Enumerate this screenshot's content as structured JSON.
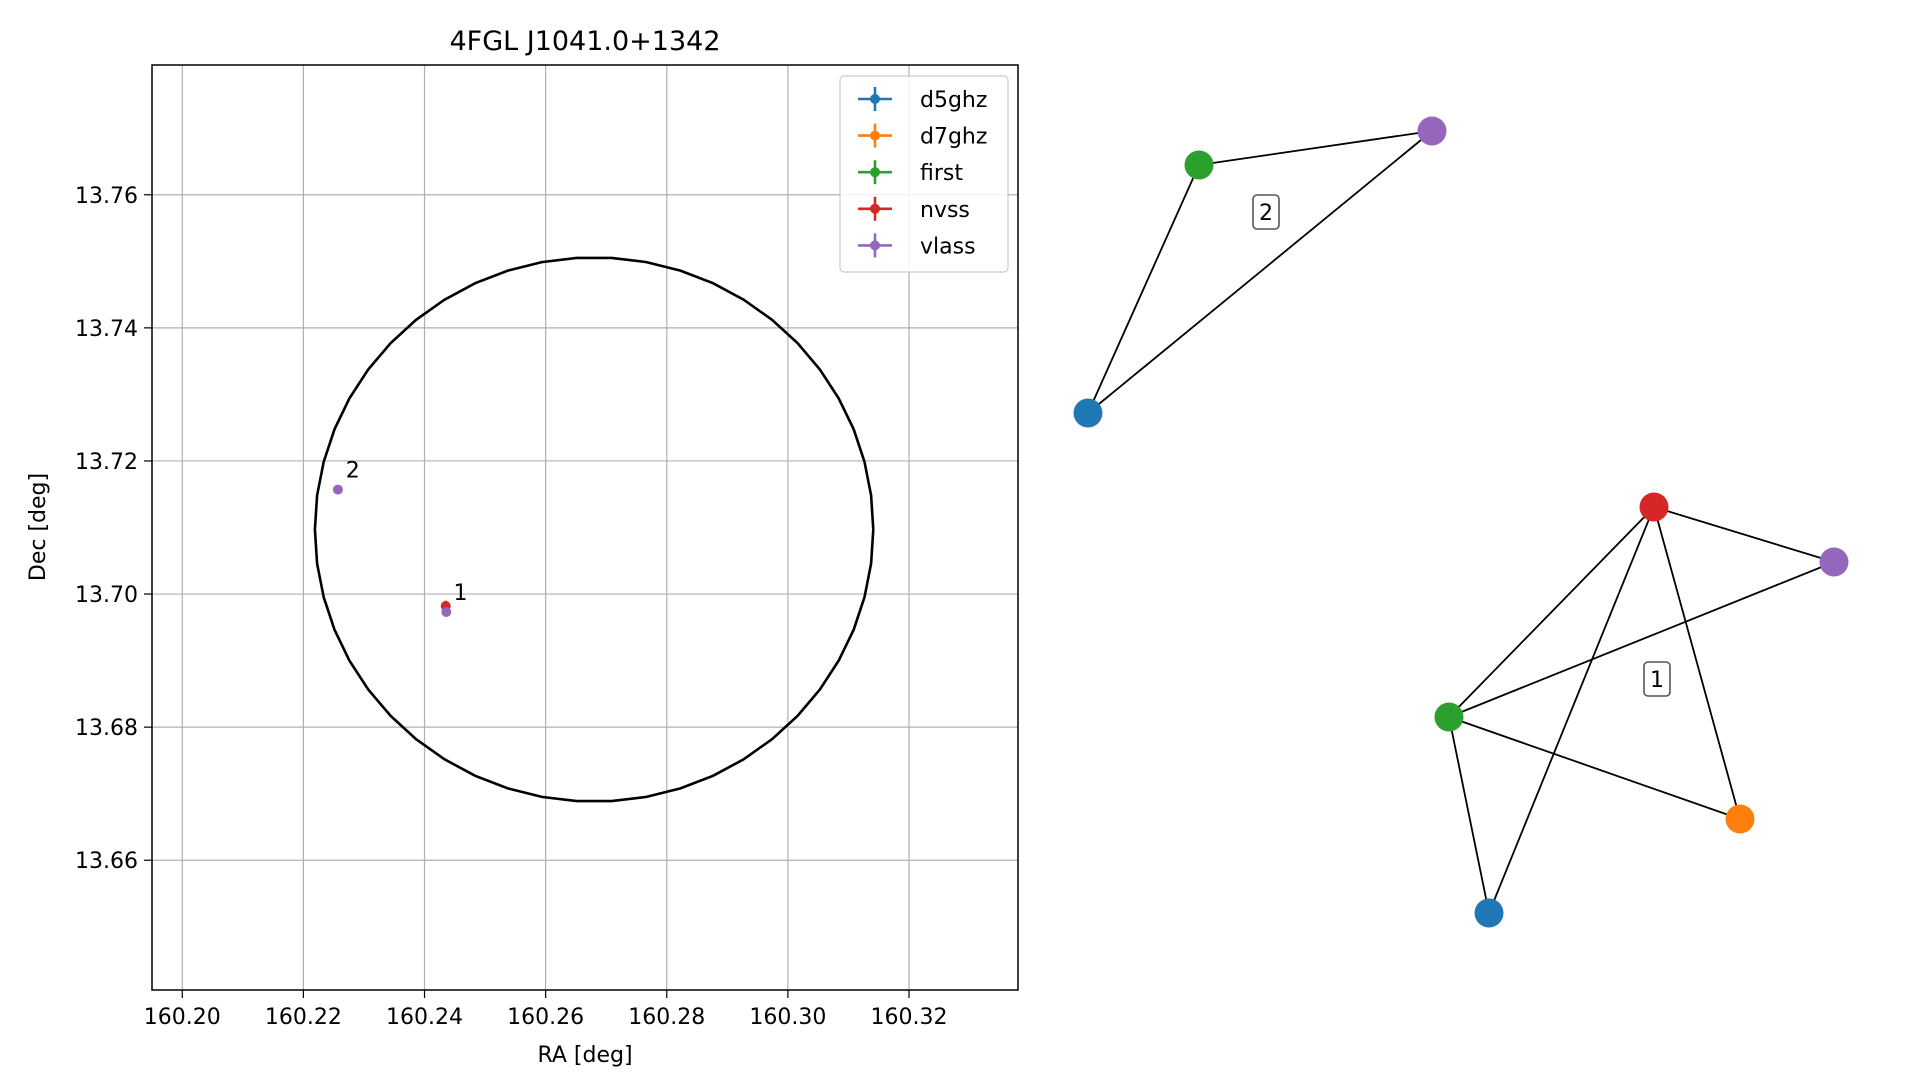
{
  "chart_data": [
    {
      "type": "scatter",
      "title": "4FGL J1041.0+1342",
      "xlabel": "RA [deg]",
      "ylabel": "Dec [deg]",
      "xlim": [
        160.195,
        160.338
      ],
      "ylim": [
        13.6405,
        13.7795
      ],
      "xticks": [
        160.2,
        160.22,
        160.24,
        160.26,
        160.28,
        160.3,
        160.32
      ],
      "xtick_labels": [
        "160.20",
        "160.22",
        "160.24",
        "160.26",
        "160.28",
        "160.30",
        "160.32"
      ],
      "yticks": [
        13.66,
        13.68,
        13.7,
        13.72,
        13.74,
        13.76
      ],
      "ytick_labels": [
        "13.66",
        "13.68",
        "13.70",
        "13.72",
        "13.74",
        "13.76"
      ],
      "grid": true,
      "legend_position": "top-right",
      "legend": [
        {
          "name": "d5ghz",
          "color": "#1f77b4"
        },
        {
          "name": "d7ghz",
          "color": "#ff7f0e"
        },
        {
          "name": "first",
          "color": "#2ca02c"
        },
        {
          "name": "nvss",
          "color": "#d62728"
        },
        {
          "name": "vlass",
          "color": "#9467bd"
        }
      ],
      "ellipse": {
        "center": [
          160.268,
          13.7097
        ],
        "semi_axis_ra": 0.0461,
        "semi_axis_dec": 0.0409,
        "color": "#000000"
      },
      "points": [
        {
          "series": "nvss",
          "x": 160.2435,
          "y": 13.6982,
          "color": "#d62728",
          "xerr": 0.0006,
          "yerr": 0.0008
        },
        {
          "series": "vlass",
          "x": 160.2436,
          "y": 13.6973,
          "color": "#9467bd"
        },
        {
          "series": "vlass",
          "x": 160.2257,
          "y": 13.7157,
          "color": "#9467bd"
        }
      ],
      "annotations": [
        {
          "text": "1",
          "x": 160.2443,
          "y": 13.6988
        },
        {
          "text": "2",
          "x": 160.2265,
          "y": 13.7172
        }
      ]
    },
    {
      "type": "diagram",
      "components": [
        {
          "label": "2",
          "nodes": [
            {
              "id": "d5ghz",
              "color": "#1f77b4"
            },
            {
              "id": "first",
              "color": "#2ca02c"
            },
            {
              "id": "vlass",
              "color": "#9467bd"
            }
          ],
          "edges": [
            [
              "d5ghz",
              "first"
            ],
            [
              "first",
              "vlass"
            ],
            [
              "d5ghz",
              "vlass"
            ]
          ]
        },
        {
          "label": "1",
          "nodes": [
            {
              "id": "nvss",
              "color": "#d62728"
            },
            {
              "id": "vlass",
              "color": "#9467bd"
            },
            {
              "id": "first",
              "color": "#2ca02c"
            },
            {
              "id": "d7ghz",
              "color": "#ff7f0e"
            },
            {
              "id": "d5ghz",
              "color": "#1f77b4"
            }
          ],
          "edges": [
            [
              "nvss",
              "vlass"
            ],
            [
              "nvss",
              "first"
            ],
            [
              "nvss",
              "d5ghz"
            ],
            [
              "nvss",
              "d7ghz"
            ],
            [
              "first",
              "vlass"
            ],
            [
              "first",
              "d7ghz"
            ],
            [
              "first",
              "d5ghz"
            ]
          ]
        }
      ]
    }
  ]
}
